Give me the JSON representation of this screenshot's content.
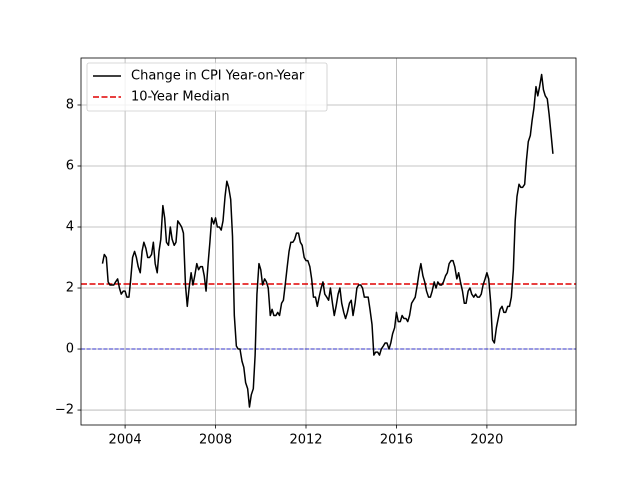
{
  "chart_data": {
    "type": "line",
    "xlim": [
      2002.05,
      2023.94
    ],
    "ylim": [
      -2.49,
      9.54
    ],
    "xticks": [
      2004,
      2008,
      2012,
      2016,
      2020
    ],
    "yticks": [
      {
        "value": -2,
        "label": "−2"
      },
      0,
      2,
      4,
      6,
      8
    ],
    "grid": true,
    "legend": "upper left",
    "series": [
      {
        "name": "Change in CPI Year-on-Year",
        "color": "#000000",
        "x": [
          2003.0,
          2003.08,
          2003.17,
          2003.25,
          2003.33,
          2003.42,
          2003.5,
          2003.58,
          2003.67,
          2003.75,
          2003.83,
          2003.92,
          2004.0,
          2004.08,
          2004.17,
          2004.25,
          2004.33,
          2004.42,
          2004.5,
          2004.58,
          2004.67,
          2004.75,
          2004.83,
          2004.92,
          2005.0,
          2005.08,
          2005.17,
          2005.25,
          2005.33,
          2005.42,
          2005.5,
          2005.58,
          2005.67,
          2005.75,
          2005.83,
          2005.92,
          2006.0,
          2006.08,
          2006.17,
          2006.25,
          2006.33,
          2006.42,
          2006.5,
          2006.58,
          2006.67,
          2006.75,
          2006.83,
          2006.92,
          2007.0,
          2007.08,
          2007.17,
          2007.25,
          2007.33,
          2007.42,
          2007.5,
          2007.58,
          2007.67,
          2007.75,
          2007.83,
          2007.92,
          2008.0,
          2008.08,
          2008.17,
          2008.25,
          2008.33,
          2008.42,
          2008.5,
          2008.58,
          2008.67,
          2008.75,
          2008.83,
          2008.92,
          2009.0,
          2009.08,
          2009.17,
          2009.25,
          2009.33,
          2009.42,
          2009.5,
          2009.58,
          2009.67,
          2009.75,
          2009.83,
          2009.92,
          2010.0,
          2010.08,
          2010.17,
          2010.25,
          2010.33,
          2010.42,
          2010.5,
          2010.58,
          2010.67,
          2010.75,
          2010.83,
          2010.92,
          2011.0,
          2011.08,
          2011.17,
          2011.25,
          2011.33,
          2011.42,
          2011.5,
          2011.58,
          2011.67,
          2011.75,
          2011.83,
          2011.92,
          2012.0,
          2012.08,
          2012.17,
          2012.25,
          2012.33,
          2012.42,
          2012.5,
          2012.58,
          2012.67,
          2012.75,
          2012.83,
          2012.92,
          2013.0,
          2013.08,
          2013.17,
          2013.25,
          2013.33,
          2013.42,
          2013.5,
          2013.58,
          2013.67,
          2013.75,
          2013.83,
          2013.92,
          2014.0,
          2014.08,
          2014.17,
          2014.25,
          2014.33,
          2014.42,
          2014.5,
          2014.58,
          2014.67,
          2014.75,
          2014.83,
          2014.92,
          2015.0,
          2015.08,
          2015.17,
          2015.25,
          2015.33,
          2015.42,
          2015.5,
          2015.58,
          2015.67,
          2015.75,
          2015.83,
          2015.92,
          2016.0,
          2016.08,
          2016.17,
          2016.25,
          2016.33,
          2016.42,
          2016.5,
          2016.58,
          2016.67,
          2016.75,
          2016.83,
          2016.92,
          2017.0,
          2017.08,
          2017.17,
          2017.25,
          2017.33,
          2017.42,
          2017.5,
          2017.58,
          2017.67,
          2017.75,
          2017.83,
          2017.92,
          2018.0,
          2018.08,
          2018.17,
          2018.25,
          2018.33,
          2018.42,
          2018.5,
          2018.58,
          2018.67,
          2018.75,
          2018.83,
          2018.92,
          2019.0,
          2019.08,
          2019.17,
          2019.25,
          2019.33,
          2019.42,
          2019.5,
          2019.58,
          2019.67,
          2019.75,
          2019.83,
          2019.92,
          2020.0,
          2020.08,
          2020.17,
          2020.25,
          2020.33,
          2020.42,
          2020.5,
          2020.58,
          2020.67,
          2020.75,
          2020.83,
          2020.92,
          2021.0,
          2021.08,
          2021.17,
          2021.25,
          2021.33,
          2021.42,
          2021.5,
          2021.58,
          2021.67,
          2021.75,
          2021.83,
          2021.92,
          2022.0,
          2022.08,
          2022.17,
          2022.25,
          2022.33,
          2022.42,
          2022.5,
          2022.58,
          2022.67,
          2022.75,
          2022.83,
          2022.92
        ],
        "values": [
          2.8,
          3.1,
          3.0,
          2.2,
          2.1,
          2.1,
          2.1,
          2.2,
          2.3,
          2.0,
          1.8,
          1.9,
          1.9,
          1.7,
          1.7,
          2.3,
          3.0,
          3.2,
          3.0,
          2.7,
          2.5,
          3.2,
          3.5,
          3.3,
          3.0,
          3.0,
          3.1,
          3.5,
          2.8,
          2.5,
          3.2,
          3.6,
          4.7,
          4.3,
          3.5,
          3.4,
          4.0,
          3.6,
          3.4,
          3.5,
          4.2,
          4.1,
          4.0,
          3.8,
          2.1,
          1.4,
          2.0,
          2.5,
          2.1,
          2.4,
          2.8,
          2.6,
          2.7,
          2.7,
          2.4,
          1.9,
          2.8,
          3.5,
          4.3,
          4.1,
          4.3,
          4.0,
          4.0,
          3.9,
          4.2,
          5.0,
          5.5,
          5.3,
          4.9,
          3.7,
          1.1,
          0.1,
          0.0,
          0.0,
          -0.4,
          -0.6,
          -1.1,
          -1.3,
          -1.9,
          -1.5,
          -1.3,
          -0.2,
          1.8,
          2.8,
          2.6,
          2.1,
          2.3,
          2.2,
          2.0,
          1.1,
          1.3,
          1.1,
          1.1,
          1.2,
          1.1,
          1.5,
          1.6,
          2.1,
          2.7,
          3.2,
          3.5,
          3.5,
          3.6,
          3.8,
          3.8,
          3.5,
          3.4,
          3.0,
          2.9,
          2.9,
          2.7,
          2.3,
          1.7,
          1.7,
          1.4,
          1.7,
          2.0,
          2.2,
          1.8,
          1.7,
          1.6,
          2.0,
          1.5,
          1.1,
          1.4,
          1.8,
          2.0,
          1.5,
          1.2,
          1.0,
          1.2,
          1.5,
          1.6,
          1.1,
          1.5,
          2.0,
          2.1,
          2.1,
          2.0,
          1.7,
          1.7,
          1.7,
          1.3,
          0.8,
          -0.2,
          -0.1,
          -0.1,
          -0.2,
          0.0,
          0.1,
          0.2,
          0.2,
          0.0,
          0.2,
          0.5,
          0.7,
          1.2,
          0.9,
          0.9,
          1.1,
          1.0,
          1.0,
          0.9,
          1.1,
          1.5,
          1.6,
          1.7,
          2.1,
          2.5,
          2.8,
          2.4,
          2.2,
          1.9,
          1.7,
          1.7,
          1.9,
          2.2,
          2.0,
          2.2,
          2.1,
          2.1,
          2.2,
          2.4,
          2.5,
          2.8,
          2.9,
          2.9,
          2.7,
          2.3,
          2.5,
          2.2,
          1.9,
          1.5,
          1.5,
          1.9,
          2.0,
          1.8,
          1.7,
          1.8,
          1.7,
          1.7,
          1.8,
          2.1,
          2.3,
          2.5,
          2.3,
          1.5,
          0.3,
          0.2,
          0.7,
          1.0,
          1.3,
          1.4,
          1.2,
          1.2,
          1.4,
          1.4,
          1.7,
          2.6,
          4.2,
          5.0,
          5.4,
          5.3,
          5.3,
          5.4,
          6.2,
          6.8,
          7.0,
          7.5,
          7.9,
          8.6,
          8.3,
          8.6,
          9.0,
          8.5,
          8.3,
          8.2,
          7.7,
          7.1,
          6.4
        ]
      }
    ],
    "hlines": [
      {
        "name": "10-Year Median",
        "value": 2.13,
        "color": "#e00000",
        "dash": true
      },
      {
        "value": 0,
        "color": "#0000cc",
        "dash": true
      }
    ]
  }
}
